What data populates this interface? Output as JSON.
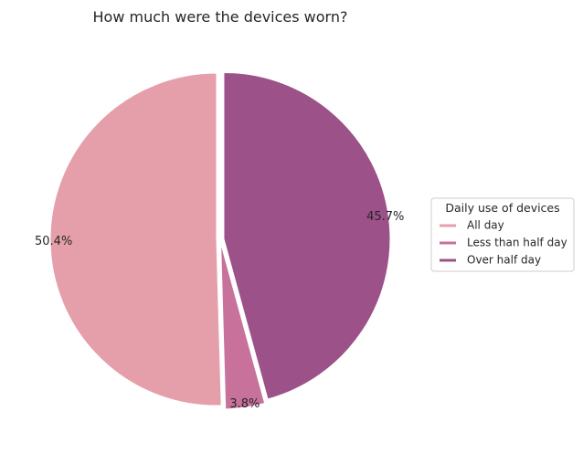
{
  "chart_data": {
    "type": "pie",
    "title": "How much were the devices worn?",
    "categories": [
      "All day",
      "Less than half day",
      "Over half day"
    ],
    "values": [
      50.4,
      3.8,
      45.7
    ],
    "value_labels": [
      "50.4%",
      "3.8%",
      "45.7%"
    ],
    "colors": [
      "#e49faa",
      "#c8729b",
      "#9c5188"
    ],
    "start_angle_deg": 90,
    "direction": "counterclockwise",
    "legend": {
      "title": "Daily use of devices",
      "placement": "center-right",
      "entries": [
        "All day",
        "Less than half day",
        "Over half day"
      ]
    }
  }
}
